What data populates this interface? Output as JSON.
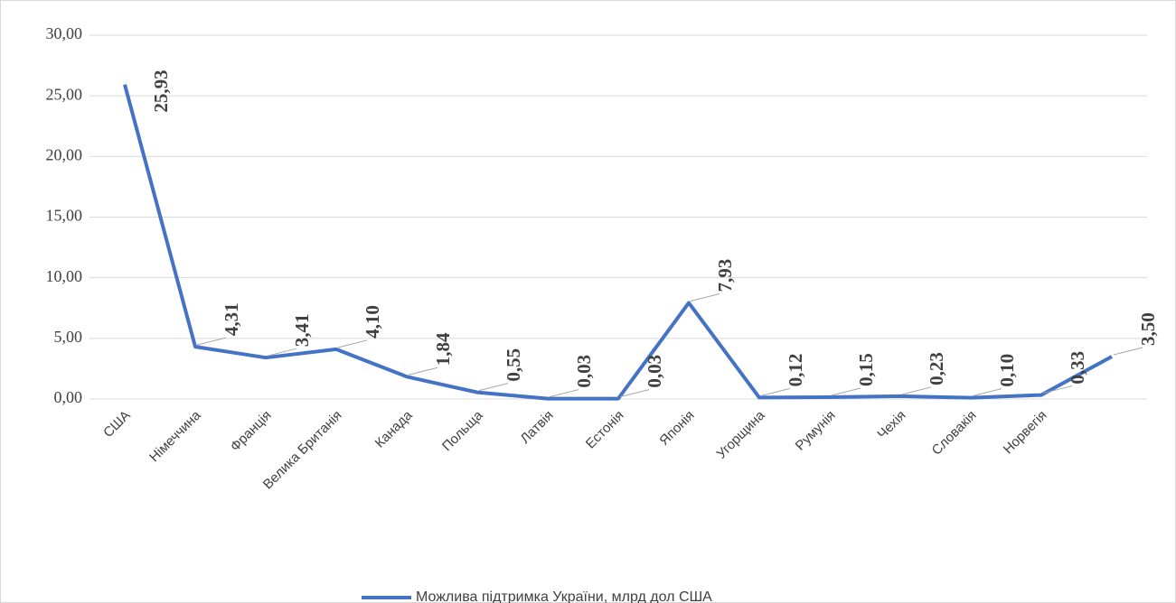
{
  "chart_data": {
    "type": "line",
    "categories": [
      "США",
      "Німеччина",
      "Франція",
      "Велика Британія",
      "Канада",
      "Польща",
      "Латвія",
      "Естонія",
      "Японія",
      "Угорщина",
      "Румунія",
      "Чехія",
      "Словакія",
      "Норвегія",
      null
    ],
    "series": [
      {
        "name": "Можлива підтримка України, млрд дол США",
        "color": "#4472c4",
        "values": [
          25.93,
          4.31,
          3.41,
          4.1,
          1.84,
          0.55,
          0.03,
          0.03,
          7.93,
          0.12,
          0.15,
          0.23,
          0.1,
          0.33,
          3.5
        ],
        "value_labels": [
          "25,93",
          "4,31",
          "3,41",
          "4,10",
          "1,84",
          "0,55",
          "0,03",
          "0,03",
          "7,93",
          "0,12",
          "0,15",
          "0,23",
          "0,10",
          "0,33",
          "3,50"
        ]
      }
    ],
    "ylim": [
      0,
      30
    ],
    "yticks": [
      {
        "value": 0,
        "label": "0,00"
      },
      {
        "value": 5,
        "label": "5,00"
      },
      {
        "value": 10,
        "label": "10,00"
      },
      {
        "value": 15,
        "label": "15,00"
      },
      {
        "value": 20,
        "label": "20,00"
      },
      {
        "value": 25,
        "label": "25,00"
      },
      {
        "value": 30,
        "label": "30,00"
      }
    ],
    "grid": true,
    "legend": "bottom"
  }
}
